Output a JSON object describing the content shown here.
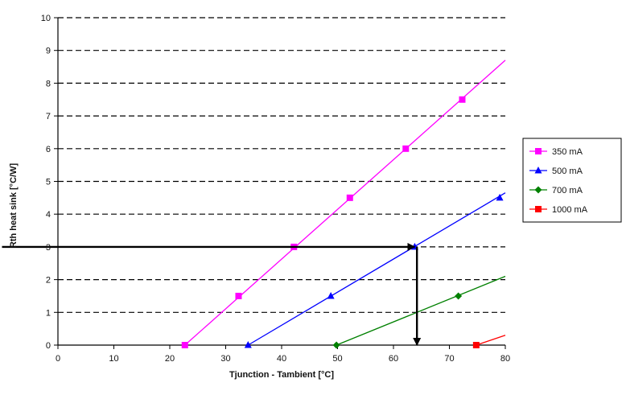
{
  "chart_data": {
    "type": "line",
    "xlabel": "Tjunction - Tambient [°C]",
    "ylabel": "Rth heat sink [°C/W]",
    "xlim": [
      0,
      80
    ],
    "ylim": [
      0,
      10
    ],
    "x_ticks": [
      "0",
      "10",
      "20",
      "30",
      "40",
      "50",
      "60",
      "70",
      "80"
    ],
    "y_ticks": [
      "0",
      "1",
      "2",
      "3",
      "4",
      "5",
      "6",
      "7",
      "8",
      "9",
      "10"
    ],
    "grid": "horizontal dashed",
    "legend_position": "right",
    "series": [
      {
        "name": "350 mA",
        "color": "#ff00ff",
        "marker": "square",
        "line": [
          [
            22.7,
            0
          ],
          [
            80,
            8.7
          ]
        ],
        "points": [
          [
            22.7,
            0
          ],
          [
            32.3,
            1.5
          ],
          [
            42.2,
            3.0
          ],
          [
            52.2,
            4.5
          ],
          [
            62.2,
            6.0
          ],
          [
            72.3,
            7.5
          ]
        ]
      },
      {
        "name": "500 mA",
        "color": "#0000ff",
        "marker": "triangle",
        "line": [
          [
            34,
            0
          ],
          [
            80,
            4.65
          ]
        ],
        "points": [
          [
            34,
            0
          ],
          [
            48.8,
            1.5
          ],
          [
            63.8,
            3.0
          ],
          [
            79,
            4.5
          ]
        ]
      },
      {
        "name": "700 mA",
        "color": "#008000",
        "marker": "diamond",
        "line": [
          [
            49.8,
            0
          ],
          [
            80,
            2.1
          ]
        ],
        "points": [
          [
            49.8,
            0
          ],
          [
            71.6,
            1.5
          ]
        ]
      },
      {
        "name": "1000 mA",
        "color": "#ff0000",
        "marker": "square",
        "line": [
          [
            74.8,
            0
          ],
          [
            80,
            0.3
          ]
        ],
        "points": [
          [
            74.8,
            0
          ]
        ]
      }
    ],
    "annotations": [
      {
        "type": "arrow",
        "from": [
          -10,
          3
        ],
        "to": [
          63.8,
          3
        ]
      },
      {
        "type": "arrow",
        "from": [
          64.2,
          3
        ],
        "to": [
          64.2,
          0
        ]
      }
    ]
  }
}
